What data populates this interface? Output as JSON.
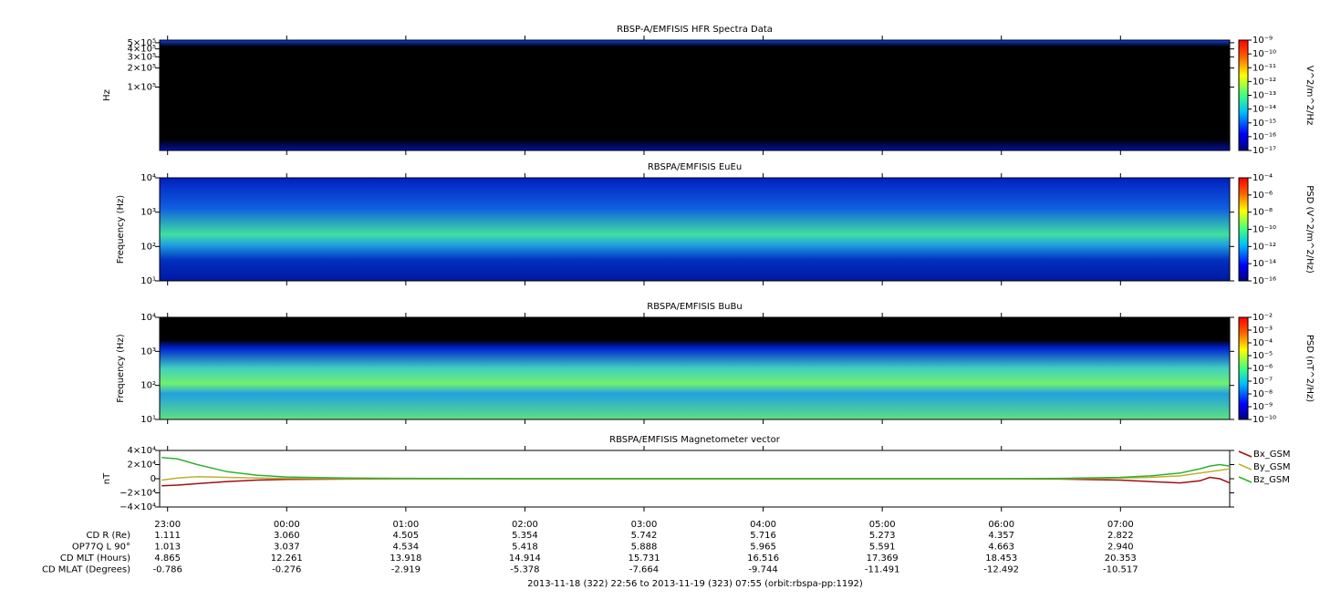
{
  "time_axis": {
    "xlim": [
      "2013-11-18 22:56",
      "2013-11-19 07:55"
    ],
    "xticks": [
      {
        "value": "2013-11-18 23:00",
        "label": "23:00"
      },
      {
        "value": "2013-11-19 00:00",
        "label": "00:00"
      },
      {
        "value": "2013-11-19 01:00",
        "label": "01:00"
      },
      {
        "value": "2013-11-19 02:00",
        "label": "02:00"
      },
      {
        "value": "2013-11-19 03:00",
        "label": "03:00"
      },
      {
        "value": "2013-11-19 04:00",
        "label": "04:00"
      },
      {
        "value": "2013-11-19 05:00",
        "label": "05:00"
      },
      {
        "value": "2013-11-19 06:00",
        "label": "06:00"
      },
      {
        "value": "2013-11-19 07:00",
        "label": "07:00"
      }
    ]
  },
  "chart_data": [
    {
      "type": "spectrogram",
      "title": "RBSP-A/EMFISIS  HFR Spectra Data",
      "y_label": "Hz",
      "log_y": true,
      "ylim": [
        10000,
        550000
      ],
      "yticks": [
        {
          "value": 500000,
          "label": "5×10⁵"
        },
        {
          "value": 400000,
          "label": "4×10⁵"
        },
        {
          "value": 300000,
          "label": "3×10⁵"
        },
        {
          "value": 200000,
          "label": "2×10⁵"
        },
        {
          "value": 100000,
          "label": "1×10⁵"
        }
      ],
      "colorbar": {
        "label": "V^2/m^2/Hz",
        "clim": [
          1e-17,
          1e-09
        ],
        "ticks": [
          {
            "value": 1e-09,
            "label": "10⁻⁹"
          },
          {
            "value": 1e-10,
            "label": "10⁻¹⁰"
          },
          {
            "value": 1e-11,
            "label": "10⁻¹¹"
          },
          {
            "value": 1e-12,
            "label": "10⁻¹²"
          },
          {
            "value": 1e-13,
            "label": "10⁻¹³"
          },
          {
            "value": 1e-14,
            "label": "10⁻¹⁴"
          },
          {
            "value": 1e-15,
            "label": "10⁻¹⁵"
          },
          {
            "value": 1e-16,
            "label": "10⁻¹⁶"
          },
          {
            "value": 1e-17,
            "label": "10⁻¹⁷"
          }
        ]
      }
    },
    {
      "type": "spectrogram",
      "title": "RBSPA/EMFISIS  EuEu",
      "y_label": "Frequency (Hz)",
      "log_y": true,
      "ylim": [
        10,
        10000
      ],
      "yticks": [
        {
          "value": 10,
          "label": "10¹"
        },
        {
          "value": 100,
          "label": "10²"
        },
        {
          "value": 1000,
          "label": "10³"
        },
        {
          "value": 10000,
          "label": "10⁴"
        }
      ],
      "colorbar": {
        "label": "PSD (V^2/m^2/Hz)",
        "clim": [
          1e-16,
          0.0001
        ],
        "ticks": [
          {
            "value": 0.0001,
            "label": "10⁻⁴"
          },
          {
            "value": 1e-06,
            "label": "10⁻⁶"
          },
          {
            "value": 1e-08,
            "label": "10⁻⁸"
          },
          {
            "value": 1e-10,
            "label": "10⁻¹⁰"
          },
          {
            "value": 1e-12,
            "label": "10⁻¹²"
          },
          {
            "value": 1e-14,
            "label": "10⁻¹⁴"
          },
          {
            "value": 1e-16,
            "label": "10⁻¹⁶"
          }
        ]
      }
    },
    {
      "type": "spectrogram",
      "title": "RBSPA/EMFISIS  BuBu",
      "y_label": "Frequency (Hz)",
      "log_y": true,
      "ylim": [
        10,
        10000
      ],
      "yticks": [
        {
          "value": 10,
          "label": "10¹"
        },
        {
          "value": 100,
          "label": "10²"
        },
        {
          "value": 1000,
          "label": "10³"
        },
        {
          "value": 10000,
          "label": "10⁴"
        }
      ],
      "colorbar": {
        "label": "PSD (nT^2/Hz)",
        "clim": [
          1e-10,
          0.01
        ],
        "ticks": [
          {
            "value": 0.01,
            "label": "10⁻²"
          },
          {
            "value": 0.001,
            "label": "10⁻³"
          },
          {
            "value": 0.0001,
            "label": "10⁻⁴"
          },
          {
            "value": 1e-05,
            "label": "10⁻⁵"
          },
          {
            "value": 1e-06,
            "label": "10⁻⁶"
          },
          {
            "value": 1e-07,
            "label": "10⁻⁷"
          },
          {
            "value": 1e-08,
            "label": "10⁻⁸"
          },
          {
            "value": 1e-09,
            "label": "10⁻⁹"
          },
          {
            "value": 1e-10,
            "label": "10⁻¹⁰"
          }
        ]
      }
    },
    {
      "type": "line",
      "title": "RBSPA/EMFISIS  Magnetometer vector",
      "y_label": "nT",
      "ylim": [
        -40000,
        40000
      ],
      "yticks": [
        {
          "value": 40000,
          "label": "4×10⁴"
        },
        {
          "value": 20000,
          "label": "2×10⁴"
        },
        0,
        {
          "value": -20000,
          "label": "−2×10⁴"
        },
        {
          "value": -40000,
          "label": "−4×10⁴"
        }
      ],
      "x": [
        "2013-11-18 22:57",
        "2013-11-18 23:05",
        "2013-11-18 23:15",
        "2013-11-18 23:30",
        "2013-11-18 23:45",
        "2013-11-19 00:00",
        "2013-11-19 00:30",
        "2013-11-19 01:00",
        "2013-11-19 02:00",
        "2013-11-19 03:00",
        "2013-11-19 04:00",
        "2013-11-19 05:00",
        "2013-11-19 06:00",
        "2013-11-19 06:30",
        "2013-11-19 07:00",
        "2013-11-19 07:15",
        "2013-11-19 07:30",
        "2013-11-19 07:40",
        "2013-11-19 07:45",
        "2013-11-19 07:50",
        "2013-11-19 07:55"
      ],
      "series": [
        {
          "name": "Bx_GSM",
          "color": "#a01010",
          "values": [
            -10000,
            -9000,
            -7000,
            -4000,
            -2000,
            -1000,
            -500,
            0,
            0,
            0,
            0,
            0,
            0,
            -500,
            -2000,
            -4000,
            -6000,
            -3000,
            2000,
            0,
            -6000
          ]
        },
        {
          "name": "By_GSM",
          "color": "#c0b030",
          "values": [
            -2000,
            1000,
            3000,
            2000,
            1000,
            500,
            0,
            0,
            0,
            0,
            0,
            0,
            0,
            0,
            1000,
            2000,
            4000,
            8000,
            10000,
            12000,
            14000
          ]
        },
        {
          "name": "Bz_GSM",
          "color": "#30b030",
          "values": [
            30000,
            28000,
            20000,
            10000,
            5000,
            2500,
            1000,
            500,
            0,
            0,
            0,
            0,
            0,
            500,
            2000,
            4000,
            8000,
            14000,
            18000,
            20000,
            18000
          ]
        }
      ]
    }
  ],
  "ephemeris": {
    "rows": [
      {
        "label": "CD R (Re)",
        "values": [
          "1.111",
          "3.060",
          "4.505",
          "5.354",
          "5.742",
          "5.716",
          "5.273",
          "4.357",
          "2.822"
        ]
      },
      {
        "label": "OP77Q L 90°",
        "values": [
          "1.013",
          "3.037",
          "4.534",
          "5.418",
          "5.888",
          "5.965",
          "5.591",
          "4.663",
          "2.940"
        ]
      },
      {
        "label": "CD MLT (Hours)",
        "values": [
          "4.865",
          "12.261",
          "13.918",
          "14.914",
          "15.731",
          "16.516",
          "17.369",
          "18.453",
          "20.353"
        ]
      },
      {
        "label": "CD MLAT (Degrees)",
        "values": [
          "-0.786",
          "-0.276",
          "-2.919",
          "-5.378",
          "-7.664",
          "-9.744",
          "-11.491",
          "-12.492",
          "-10.517"
        ]
      }
    ]
  },
  "footer": "2013-11-18 (322) 22:56 to 2013-11-19 (323) 07:55 (orbit:rbspa-pp:1192)"
}
